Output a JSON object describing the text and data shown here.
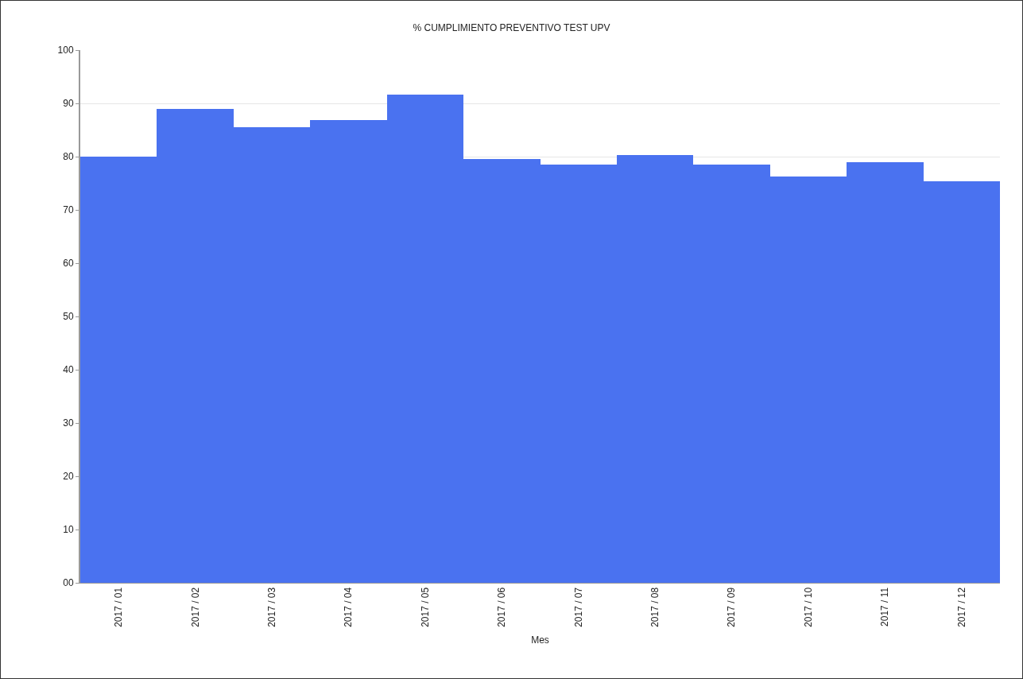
{
  "chart_data": {
    "type": "bar",
    "title": "% CUMPLIMIENTO PREVENTIVO TEST UPV",
    "xlabel": "Mes",
    "categories": [
      "2017 / 01",
      "2017 / 02",
      "2017 / 03",
      "2017 / 04",
      "2017 / 05",
      "2017 / 06",
      "2017 / 07",
      "2017 / 08",
      "2017 / 09",
      "2017 / 10",
      "2017 / 11",
      "2017 / 12"
    ],
    "values": [
      80.0,
      89.0,
      85.5,
      86.8,
      91.7,
      79.6,
      78.5,
      80.3,
      78.5,
      76.2,
      79.0,
      75.3
    ],
    "color": "#4a72f0",
    "ylim": [
      0,
      100
    ],
    "yticks": [
      {
        "value": 0,
        "label": "00"
      },
      10,
      20,
      30,
      40,
      50,
      60,
      70,
      80,
      90,
      100
    ],
    "grid": "y"
  }
}
